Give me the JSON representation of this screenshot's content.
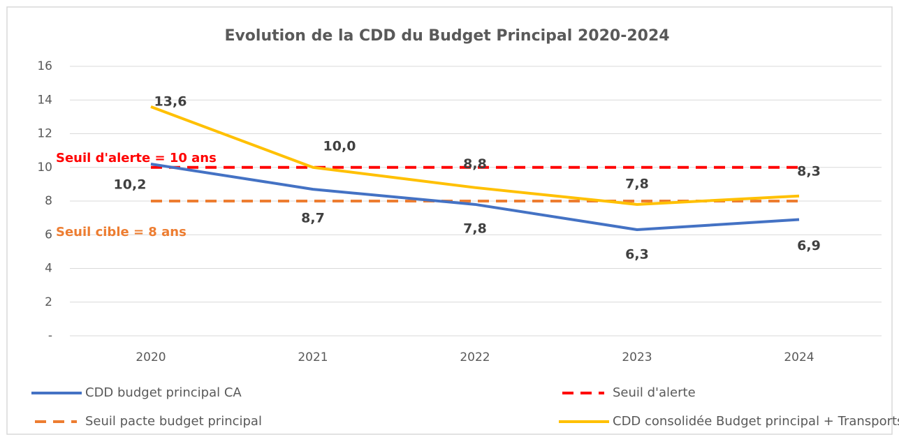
{
  "chart_data": {
    "type": "line",
    "title": "Evolution de la CDD du Budget Principal 2020-2024",
    "categories": [
      "2020",
      "2021",
      "2022",
      "2023",
      "2024"
    ],
    "series": [
      {
        "name": "CDD budget principal CA",
        "color": "#4472c4",
        "style": "solid",
        "values": [
          10.2,
          8.7,
          7.8,
          6.3,
          6.9
        ],
        "value_labels": [
          "10,2",
          "8,7",
          "7,8",
          "6,3",
          "6,9"
        ]
      },
      {
        "name": "Seuil d'alerte",
        "color": "#ff0000",
        "style": "dashed",
        "values": [
          10,
          10,
          10,
          10,
          10
        ]
      },
      {
        "name": "Seuil pacte budget principal",
        "color": "#ed7d31",
        "style": "dashed",
        "values": [
          8,
          8,
          8,
          8,
          8
        ]
      },
      {
        "name": "CDD consolidée Budget principal + Transports",
        "color": "#ffc000",
        "style": "solid",
        "values": [
          13.6,
          10.0,
          8.8,
          7.8,
          8.3
        ],
        "value_labels": [
          "13,6",
          "10,0",
          "8,8",
          "7,8",
          "8,3"
        ]
      }
    ],
    "annotations": [
      {
        "text": "Seuil d'alerte = 10 ans",
        "color": "#ff0000"
      },
      {
        "text": "Seuil cible = 8 ans",
        "color": "#ed7d31"
      }
    ],
    "ylim": [
      0,
      16
    ],
    "yticks": [
      {
        "value": 0,
        "label": "-"
      },
      2,
      4,
      6,
      8,
      10,
      12,
      14,
      16
    ],
    "grid": true,
    "legend": "bottom"
  }
}
